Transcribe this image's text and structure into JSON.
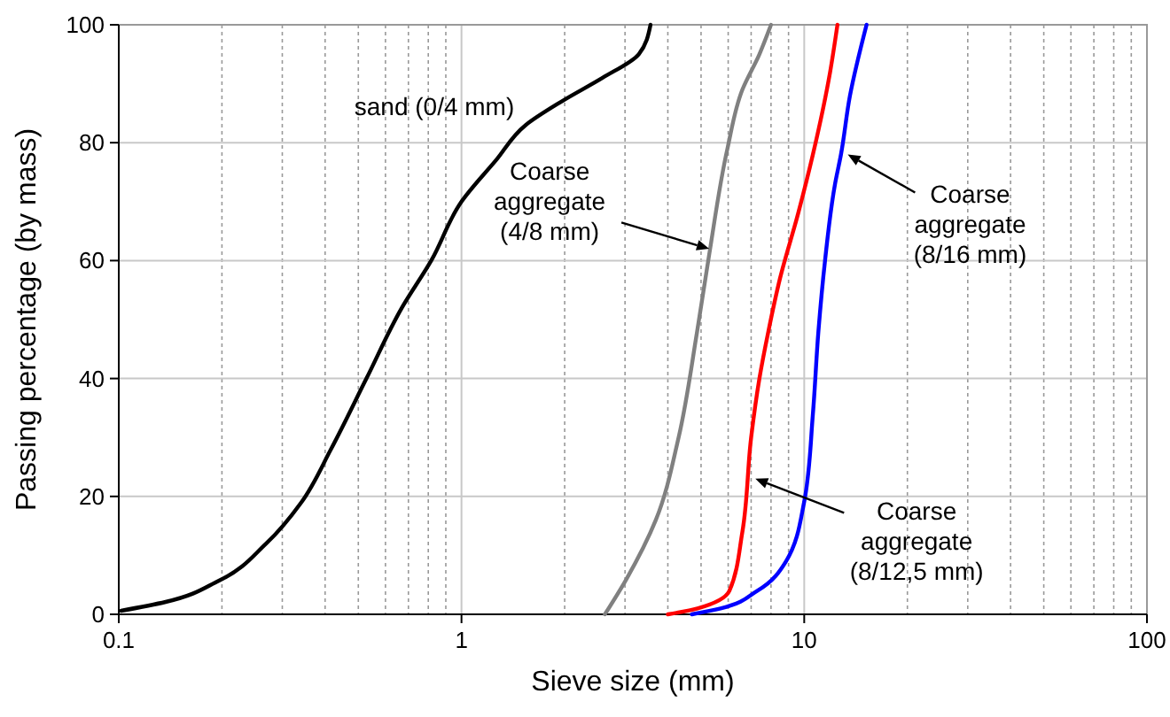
{
  "chart_data": {
    "type": "line",
    "xlabel": "Sieve size (mm)",
    "ylabel": "Passing percentage (by mass)",
    "log": "x",
    "grid": true,
    "marker": "none",
    "line_style": "solid",
    "xlim": [
      0.1,
      100
    ],
    "xticks": [
      0.1,
      1,
      10,
      100
    ],
    "ylim": [
      0,
      100
    ],
    "yticks": [
      0,
      20,
      40,
      60,
      80,
      100
    ],
    "series": [
      {
        "color": "#000000",
        "x": [
          0.1016,
          0.137,
          0.196,
          0.269,
          0.341,
          0.416,
          0.528,
          0.67,
          0.816,
          1.0,
          1.26,
          1.54,
          1.96,
          2.58,
          3.29,
          3.56
        ],
        "values": [
          0.6,
          2.1,
          5.7,
          12,
          19,
          28,
          40,
          52,
          60,
          70,
          77,
          83,
          87,
          91,
          95,
          100
        ]
      },
      {
        "color": "#808080",
        "x": [
          2.62,
          3.03,
          3.69,
          4.3,
          4.87,
          5.28,
          5.97,
          6.6,
          7.4,
          8.0
        ],
        "values": [
          0,
          6,
          16,
          30,
          48,
          61,
          79,
          89,
          95,
          100
        ]
      },
      {
        "color": "#ff0000",
        "x": [
          4.0,
          4.88,
          6.05,
          6.6,
          7.0,
          7.4,
          7.86,
          8.5,
          9.6,
          10.6,
          11.9,
          12.5
        ],
        "values": [
          0,
          1,
          4,
          14,
          30,
          40,
          48,
          57,
          68,
          78,
          92,
          100
        ]
      },
      {
        "color": "#0000ff",
        "x": [
          4.7,
          5.7,
          7.3,
          8.85,
          9.99,
          10.6,
          11.0,
          11.5,
          12.3,
          12.8,
          13.6,
          15.2
        ],
        "values": [
          0,
          1,
          4,
          9,
          19,
          34,
          48,
          60,
          73,
          78,
          88,
          100
        ]
      }
    ],
    "annotations": [
      "sand (0/4 mm)",
      {
        "text": "Coarse\naggregate\n(4/8 mm)",
        "x": 5.28,
        "y": 62
      },
      {
        "text": "Coarse\naggregate\n(8/12,5 mm)",
        "x": 7.2,
        "y": 23
      },
      {
        "text": "Coarse\naggregate\n(8/16 mm)",
        "x": 13.4,
        "y": 78
      }
    ]
  }
}
